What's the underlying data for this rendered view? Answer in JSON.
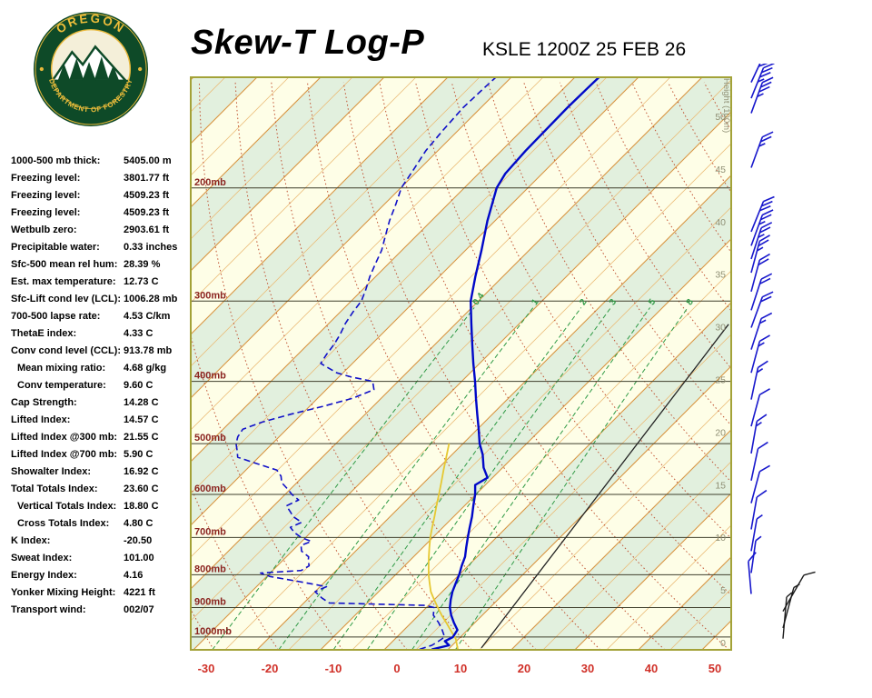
{
  "header": {
    "title": "Skew-T Log-P",
    "station_time": "KSLE 1200Z 25 FEB 26",
    "logo_arc_top": "OREGON",
    "logo_arc_bottom": "DEPARTMENT OF FORESTRY"
  },
  "indices": [
    {
      "label": "1000-500 mb thick:",
      "value": "5405.00 m",
      "indent": false
    },
    {
      "label": "Freezing level:",
      "value": "3801.77 ft",
      "indent": false
    },
    {
      "label": "Freezing level:",
      "value": "4509.23 ft",
      "indent": false
    },
    {
      "label": "Freezing level:",
      "value": "4509.23 ft",
      "indent": false
    },
    {
      "label": "Wetbulb zero:",
      "value": "2903.61 ft",
      "indent": false
    },
    {
      "label": "Precipitable water:",
      "value": "0.33 inches",
      "indent": false
    },
    {
      "label": "Sfc-500 mean rel hum:",
      "value": "28.39 %",
      "indent": false
    },
    {
      "label": "Est. max temperature:",
      "value": "12.73 C",
      "indent": false
    },
    {
      "label": "Sfc-Lift cond lev (LCL):",
      "value": "1006.28 mb",
      "indent": false
    },
    {
      "label": "700-500 lapse rate:",
      "value": "4.53 C/km",
      "indent": false
    },
    {
      "label": "ThetaE index:",
      "value": "4.33 C",
      "indent": false
    },
    {
      "label": "Conv cond level (CCL):",
      "value": "913.78 mb",
      "indent": false
    },
    {
      "label": "Mean mixing ratio:",
      "value": "4.68 g/kg",
      "indent": true
    },
    {
      "label": "Conv temperature:",
      "value": "9.60 C",
      "indent": true
    },
    {
      "label": "Cap Strength:",
      "value": "14.28 C",
      "indent": false
    },
    {
      "label": "Lifted Index:",
      "value": "14.57 C",
      "indent": false
    },
    {
      "label": "Lifted Index @300 mb:",
      "value": "21.55 C",
      "indent": false
    },
    {
      "label": "Lifted Index @700 mb:",
      "value": "5.90 C",
      "indent": false
    },
    {
      "label": "Showalter Index:",
      "value": "16.92 C",
      "indent": false
    },
    {
      "label": "Total Totals Index:",
      "value": "23.60 C",
      "indent": false
    },
    {
      "label": "Vertical Totals Index:",
      "value": "18.80 C",
      "indent": true
    },
    {
      "label": "Cross Totals Index:",
      "value": "4.80 C",
      "indent": true
    },
    {
      "label": "K Index:",
      "value": "-20.50",
      "indent": false
    },
    {
      "label": "Sweat Index:",
      "value": "101.00",
      "indent": false
    },
    {
      "label": "Energy Index:",
      "value": "4.16",
      "indent": false
    },
    {
      "label": "Yonker Mixing Height:",
      "value": "4221 ft",
      "indent": false
    },
    {
      "label": "Transport wind:",
      "value": "002/07",
      "indent": false
    }
  ],
  "chart_data": {
    "type": "line",
    "subtype": "skew-t-log-p",
    "title": "Skew-T Log-P",
    "temp_axis": {
      "ticks": [
        -30,
        -20,
        -10,
        0,
        10,
        20,
        30,
        40,
        50
      ],
      "unit": "C"
    },
    "pressure_axis": {
      "levels": [
        200,
        300,
        400,
        500,
        600,
        700,
        800,
        900,
        1000
      ],
      "labels": [
        "200mb",
        "300mb",
        "400mb",
        "500mb",
        "600mb",
        "700mb",
        "800mb",
        "900mb",
        "1000mb"
      ]
    },
    "height_axis": {
      "title": "Height (100m)",
      "ticks": [
        50,
        45,
        40,
        35,
        30,
        25,
        20,
        15,
        10,
        5,
        0
      ]
    },
    "isotherm_step_c": 5,
    "band_step_c": 10,
    "dry_adiabats_theta_c": [
      -40,
      -30,
      -20,
      -10,
      0,
      10,
      20,
      30,
      40,
      50,
      60,
      70,
      80,
      90,
      100,
      110,
      120,
      130,
      140,
      150,
      160
    ],
    "mixing_ratio_lines_gkg": [
      0.4,
      1,
      2,
      3,
      5,
      8
    ],
    "diagonal_line": [
      [
        1040,
        15
      ],
      [
        326,
        3
      ]
    ],
    "temperature_profile": [
      [
        1045,
        7.5
      ],
      [
        1030,
        9.5
      ],
      [
        1015,
        8.2
      ],
      [
        1000,
        8.8
      ],
      [
        975,
        8.4
      ],
      [
        950,
        6.7
      ],
      [
        925,
        5.1
      ],
      [
        900,
        3.7
      ],
      [
        875,
        2.6
      ],
      [
        850,
        1.6
      ],
      [
        825,
        0.8
      ],
      [
        800,
        0.0
      ],
      [
        775,
        -1.0
      ],
      [
        750,
        -1.9
      ],
      [
        725,
        -3.2
      ],
      [
        700,
        -4.5
      ],
      [
        675,
        -5.8
      ],
      [
        650,
        -7.1
      ],
      [
        625,
        -8.6
      ],
      [
        600,
        -10.1
      ],
      [
        580,
        -11.6
      ],
      [
        565,
        -10.8
      ],
      [
        545,
        -13.0
      ],
      [
        520,
        -15.2
      ],
      [
        500,
        -17.4
      ],
      [
        475,
        -19.8
      ],
      [
        450,
        -22.4
      ],
      [
        425,
        -25.1
      ],
      [
        400,
        -27.9
      ],
      [
        375,
        -31.0
      ],
      [
        350,
        -34.2
      ],
      [
        325,
        -37.6
      ],
      [
        300,
        -41.2
      ],
      [
        275,
        -44.3
      ],
      [
        250,
        -47.5
      ],
      [
        225,
        -51.2
      ],
      [
        200,
        -54.9
      ],
      [
        190,
        -55.8
      ],
      [
        175,
        -56.2
      ],
      [
        150,
        -56.4
      ],
      [
        140,
        -56.3
      ],
      [
        134,
        -56.2
      ]
    ],
    "dewpoint_profile": [
      [
        1045,
        5.5
      ],
      [
        1030,
        6.8
      ],
      [
        1015,
        7.2
      ],
      [
        1000,
        7.5
      ],
      [
        975,
        6.0
      ],
      [
        950,
        4.3
      ],
      [
        925,
        2.3
      ],
      [
        900,
        1.2
      ],
      [
        893,
        -0.5
      ],
      [
        885,
        -16.0
      ],
      [
        870,
        -17.9
      ],
      [
        850,
        -20.0
      ],
      [
        835,
        -19.0
      ],
      [
        820,
        -24.0
      ],
      [
        805,
        -29.5
      ],
      [
        795,
        -31.5
      ],
      [
        788,
        -25.5
      ],
      [
        775,
        -25.0
      ],
      [
        760,
        -26.0
      ],
      [
        750,
        -26.5
      ],
      [
        735,
        -28.5
      ],
      [
        720,
        -29.5
      ],
      [
        710,
        -28.5
      ],
      [
        700,
        -30.7
      ],
      [
        688,
        -32.5
      ],
      [
        675,
        -34.0
      ],
      [
        663,
        -33.0
      ],
      [
        650,
        -35.2
      ],
      [
        638,
        -36.5
      ],
      [
        625,
        -38.0
      ],
      [
        612,
        -37.0
      ],
      [
        600,
        -38.9
      ],
      [
        588,
        -40.5
      ],
      [
        575,
        -42.4
      ],
      [
        562,
        -43.5
      ],
      [
        550,
        -45.1
      ],
      [
        538,
        -49.0
      ],
      [
        525,
        -53.3
      ],
      [
        512,
        -54.5
      ],
      [
        500,
        -55.7
      ],
      [
        488,
        -56.5
      ],
      [
        475,
        -56.9
      ],
      [
        463,
        -55.0
      ],
      [
        450,
        -51.7
      ],
      [
        438,
        -48.0
      ],
      [
        425,
        -44.5
      ],
      [
        412,
        -42.5
      ],
      [
        400,
        -44.0
      ],
      [
        394,
        -48.0
      ],
      [
        388,
        -51.0
      ],
      [
        380,
        -53.5
      ],
      [
        375,
        -55.0
      ],
      [
        363,
        -55.5
      ],
      [
        350,
        -55.9
      ],
      [
        338,
        -56.5
      ],
      [
        325,
        -57.4
      ],
      [
        312,
        -58.0
      ],
      [
        300,
        -58.4
      ],
      [
        288,
        -59.5
      ],
      [
        275,
        -60.9
      ],
      [
        263,
        -62.0
      ],
      [
        250,
        -63.2
      ],
      [
        238,
        -64.8
      ],
      [
        225,
        -66.6
      ],
      [
        212,
        -68.2
      ],
      [
        200,
        -69.9
      ],
      [
        188,
        -70.8
      ],
      [
        175,
        -71.9
      ],
      [
        163,
        -72.4
      ],
      [
        150,
        -72.8
      ],
      [
        140,
        -72.6
      ],
      [
        134,
        -72.4
      ]
    ],
    "parcel_profile": [
      [
        1045,
        11.5
      ],
      [
        1006,
        9.5
      ],
      [
        975,
        7.3
      ],
      [
        950,
        5.5
      ],
      [
        925,
        3.6
      ],
      [
        900,
        1.8
      ],
      [
        875,
        0.0
      ],
      [
        850,
        -1.8
      ],
      [
        825,
        -3.3
      ],
      [
        800,
        -4.8
      ],
      [
        775,
        -6.2
      ],
      [
        750,
        -7.6
      ],
      [
        725,
        -9.0
      ],
      [
        700,
        -10.4
      ],
      [
        675,
        -11.7
      ],
      [
        650,
        -13.0
      ],
      [
        625,
        -14.4
      ],
      [
        600,
        -15.8
      ],
      [
        575,
        -17.3
      ],
      [
        550,
        -18.9
      ],
      [
        525,
        -20.5
      ],
      [
        500,
        -22.2
      ]
    ],
    "winds": [
      [
        137,
        40,
        25,
        "blue"
      ],
      [
        145,
        35,
        22,
        "blue"
      ],
      [
        153,
        35,
        20,
        "blue"
      ],
      [
        186,
        25,
        20,
        "blue"
      ],
      [
        234,
        30,
        22,
        "blue"
      ],
      [
        246,
        28,
        20,
        "blue"
      ],
      [
        258,
        25,
        18,
        "blue"
      ],
      [
        271,
        25,
        15,
        "blue"
      ],
      [
        290,
        20,
        15,
        "blue"
      ],
      [
        310,
        20,
        18,
        "blue"
      ],
      [
        330,
        20,
        20,
        "blue"
      ],
      [
        357,
        15,
        18,
        "blue"
      ],
      [
        388,
        15,
        15,
        "blue"
      ],
      [
        427,
        15,
        12,
        "blue"
      ],
      [
        470,
        12,
        15,
        "blue"
      ],
      [
        518,
        15,
        10,
        "blue"
      ],
      [
        571,
        10,
        12,
        "blue"
      ],
      [
        619,
        10,
        15,
        "blue"
      ],
      [
        680,
        10,
        10,
        "blue"
      ],
      [
        735,
        7,
        10,
        "blue"
      ],
      [
        795,
        5,
        8,
        "blue"
      ],
      [
        857,
        10,
        355,
        "blue"
      ],
      [
        912,
        10,
        30,
        "black"
      ],
      [
        968,
        7,
        15,
        "black"
      ],
      [
        1006,
        7,
        5,
        "black"
      ]
    ],
    "colors": {
      "temperature": "#0008C8",
      "dewpoint": "#1010C8",
      "parcel": "#E6C832",
      "isotherm_major": "#D89440",
      "isotherm_minor": "#EABB77",
      "dry_adiabat": "#C05232",
      "mixing_ratio": "#2F9A45",
      "band_green": "#E2F0DE",
      "band_cream": "#FEFEE7",
      "grid": "#3F3F2C",
      "pressure_label": "#8B2420",
      "temp_label": "#D03028",
      "height_label": "#8F8F74",
      "border": "#A3A238",
      "barb_blue": "#1818CC",
      "barb_black": "#1A1A1A",
      "diagonal": "#222222"
    }
  }
}
